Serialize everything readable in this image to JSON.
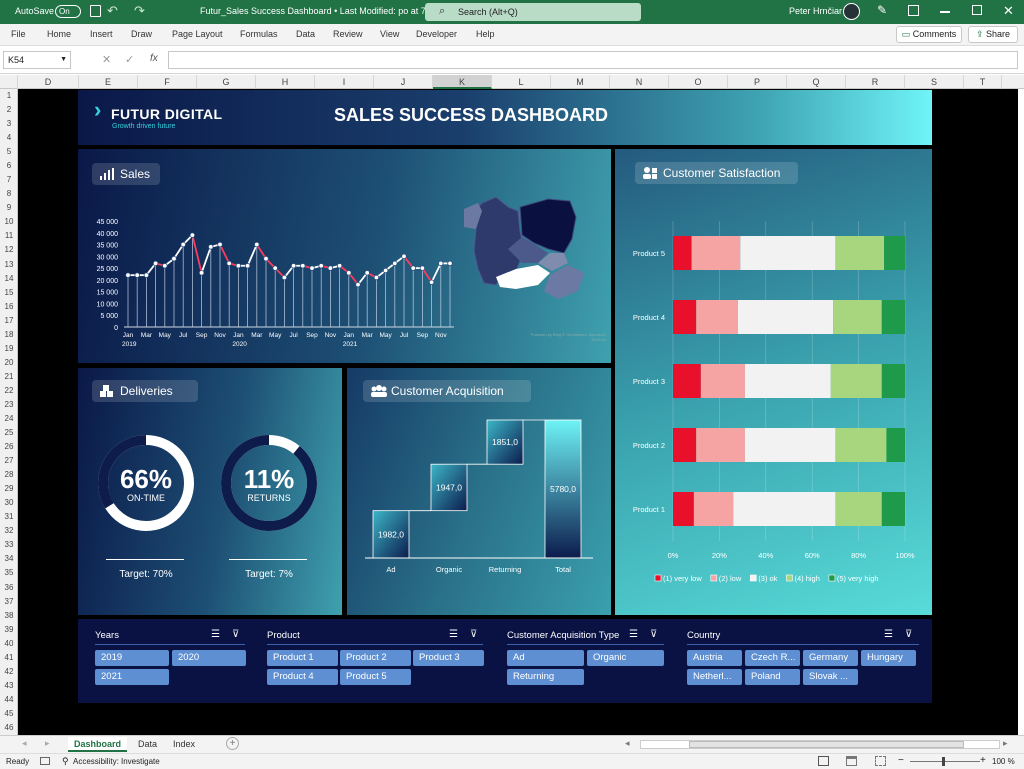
{
  "titlebar": {
    "autosave": "AutoSave",
    "toggle": "On",
    "filename": "Futur_Sales Success Dashboard • Last Modified: po at 7:16 •",
    "search": "Search (Alt+Q)",
    "user": "Peter Hrnčiar"
  },
  "ribbon": {
    "tabs": [
      "File",
      "Home",
      "Insert",
      "Draw",
      "Page Layout",
      "Formulas",
      "Data",
      "Review",
      "View",
      "Developer",
      "Help"
    ],
    "comments": "Comments",
    "share": "Share"
  },
  "formula": {
    "namebox": "K54",
    "fx": "fx",
    "value": ""
  },
  "columns": [
    "D",
    "E",
    "F",
    "G",
    "H",
    "I",
    "J",
    "K",
    "L",
    "M",
    "N",
    "O",
    "P",
    "Q",
    "R",
    "S",
    "T"
  ],
  "rows": [
    "1",
    "2",
    "3",
    "4",
    "5",
    "6",
    "7",
    "8",
    "9",
    "10",
    "11",
    "12",
    "13",
    "14",
    "15",
    "16",
    "17",
    "18",
    "19",
    "20",
    "21",
    "22",
    "23",
    "24",
    "25",
    "26",
    "27",
    "28",
    "29",
    "30",
    "31",
    "32",
    "33",
    "34",
    "35",
    "36",
    "37",
    "38",
    "39",
    "40",
    "41",
    "42",
    "43",
    "44",
    "45",
    "46"
  ],
  "header": {
    "logo": "FUTUR DIGITAL",
    "tagline": "Growth driven future",
    "title": "SALES SUCCESS DASHBOARD"
  },
  "sales": {
    "title": "Sales",
    "map_note": "Powered by Bing\n© GeoNames, Microsoft, TomTom"
  },
  "deliveries": {
    "title": "Deliveries",
    "ontime_value": "66%",
    "ontime_label": "ON-TIME",
    "ontime_target": "Target: 70%",
    "ontime_fraction": 0.66,
    "returns_value": "11%",
    "returns_label": "RETURNS",
    "returns_target": "Target: 7%",
    "returns_fraction": 0.11
  },
  "acquisition": {
    "title": "Customer Acquisition"
  },
  "satisfaction": {
    "title": "Customer Satisfaction"
  },
  "slicers": {
    "years": {
      "title": "Years",
      "items": [
        "2019",
        "2020",
        "2021"
      ]
    },
    "product": {
      "title": "Product",
      "items": [
        "Product 1",
        "Product 2",
        "Product 3",
        "Product 4",
        "Product 5"
      ]
    },
    "cat": {
      "title": "Customer Acquisition Type",
      "items": [
        "Ad",
        "Organic",
        "Returning"
      ]
    },
    "country": {
      "title": "Country",
      "items": [
        "Austria",
        "Czech R...",
        "Germany",
        "Hungary",
        "Netherl...",
        "Poland",
        "Slovak ..."
      ]
    }
  },
  "sheets": [
    "Dashboard",
    "Data",
    "Index"
  ],
  "status": {
    "ready": "Ready",
    "accessibility": "Accessibility: Investigate",
    "zoom": "100 %"
  },
  "chart_data": [
    {
      "type": "line",
      "title": "Sales",
      "x": [
        "Jan 2019",
        "Feb 2019",
        "Mar 2019",
        "Apr 2019",
        "May 2019",
        "Jun 2019",
        "Jul 2019",
        "Aug 2019",
        "Sep 2019",
        "Oct 2019",
        "Nov 2019",
        "Dec 2019",
        "Jan 2020",
        "Feb 2020",
        "Mar 2020",
        "Apr 2020",
        "May 2020",
        "Jun 2020",
        "Jul 2020",
        "Aug 2020",
        "Sep 2020",
        "Oct 2020",
        "Nov 2020",
        "Dec 2020",
        "Jan 2021",
        "Feb 2021",
        "Mar 2021",
        "Apr 2021",
        "May 2021",
        "Jun 2021",
        "Jul 2021",
        "Aug 2021",
        "Sep 2021",
        "Oct 2021",
        "Nov 2021",
        "Dec 2021"
      ],
      "xticks": [
        "Jan",
        "Mar",
        "May",
        "Jul",
        "Sep",
        "Nov",
        "Jan",
        "Mar",
        "May",
        "Jul",
        "Sep",
        "Nov",
        "Jan",
        "Mar",
        "May",
        "Jul",
        "Sep",
        "Nov"
      ],
      "years": [
        "2019",
        "2020",
        "2021"
      ],
      "values": [
        22000,
        22000,
        22000,
        27000,
        26000,
        29000,
        35000,
        39000,
        23000,
        34000,
        35000,
        27000,
        26000,
        26000,
        35000,
        29000,
        25000,
        21000,
        26000,
        26000,
        25000,
        26000,
        25000,
        26000,
        23000,
        18000,
        23000,
        21000,
        24000,
        27000,
        30000,
        25000,
        25000,
        19000,
        27000,
        27000
      ],
      "yticks": [
        "0",
        "5 000",
        "10 000",
        "15 000",
        "20 000",
        "25 000",
        "30 000",
        "35 000",
        "40 000",
        "45 000"
      ],
      "ylim": [
        0,
        45000
      ],
      "color": "#ffffff",
      "decline_color": "#ff3b5c"
    },
    {
      "type": "bar",
      "title": "Customer Acquisition",
      "subtype": "waterfall",
      "categories": [
        "Ad",
        "Organic",
        "Returning",
        "Total"
      ],
      "values": [
        1982.0,
        1947.0,
        1851.0,
        5780.0
      ],
      "labels": [
        "1982,0",
        "1947,0",
        "1851,0",
        "5780,0"
      ],
      "ylim": [
        0,
        5780
      ]
    },
    {
      "type": "bar",
      "title": "Customer Satisfaction",
      "subtype": "stacked-100-horizontal",
      "categories": [
        "Product 5",
        "Product 4",
        "Product 3",
        "Product 2",
        "Product 1"
      ],
      "series": [
        {
          "name": "(1) very low",
          "values": [
            8,
            10,
            12,
            10,
            9
          ],
          "color": "#e8102a"
        },
        {
          "name": "(2) low",
          "values": [
            21,
            18,
            19,
            21,
            17
          ],
          "color": "#f5a3a3"
        },
        {
          "name": "(3) ok",
          "values": [
            41,
            41,
            37,
            39,
            44
          ],
          "color": "#f2f2f2"
        },
        {
          "name": "(4) high",
          "values": [
            21,
            21,
            22,
            22,
            20
          ],
          "color": "#a8d67e"
        },
        {
          "name": "(5) very high",
          "values": [
            9,
            10,
            10,
            8,
            10
          ],
          "color": "#1f9a4a"
        }
      ],
      "xticks": [
        "0%",
        "20%",
        "40%",
        "60%",
        "80%",
        "100%"
      ],
      "xlim": [
        0,
        100
      ],
      "legend": "bottom"
    }
  ]
}
